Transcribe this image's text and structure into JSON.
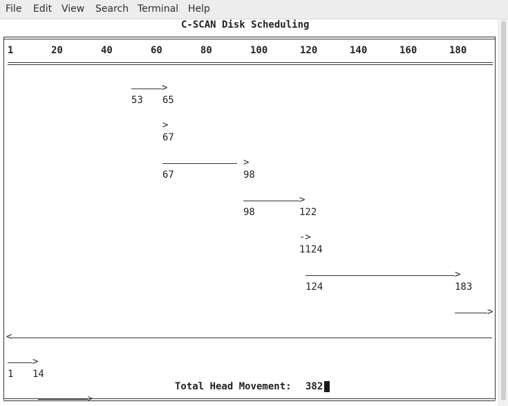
{
  "menu": [
    "File",
    "Edit",
    "View",
    "Search",
    "Terminal",
    "Help"
  ],
  "title": "C-SCAN Disk Scheduling",
  "axis_labels": [
    "1",
    "20",
    "40",
    "60",
    "80",
    "100",
    "120",
    "140",
    "160",
    "180"
  ],
  "moves": [
    {
      "from": "53",
      "to": "65",
      "arrow": ">"
    },
    {
      "from": "",
      "to": "67",
      "arrow": ">"
    },
    {
      "from": "67",
      "to": "98",
      "arrow": ">"
    },
    {
      "from": "98",
      "to": "122",
      "arrow": ">"
    },
    {
      "from": "",
      "to": "1124",
      "arrow": "->"
    },
    {
      "from": "124",
      "to": "183",
      "arrow": ">"
    },
    {
      "from": "",
      "to": "",
      "arrow": ">"
    },
    {
      "from": "",
      "to": "",
      "arrow": "<"
    },
    {
      "from": "1",
      "to": "14",
      "arrow": ">"
    }
  ],
  "total_label": "Total Head Movement:",
  "total_value": "382"
}
